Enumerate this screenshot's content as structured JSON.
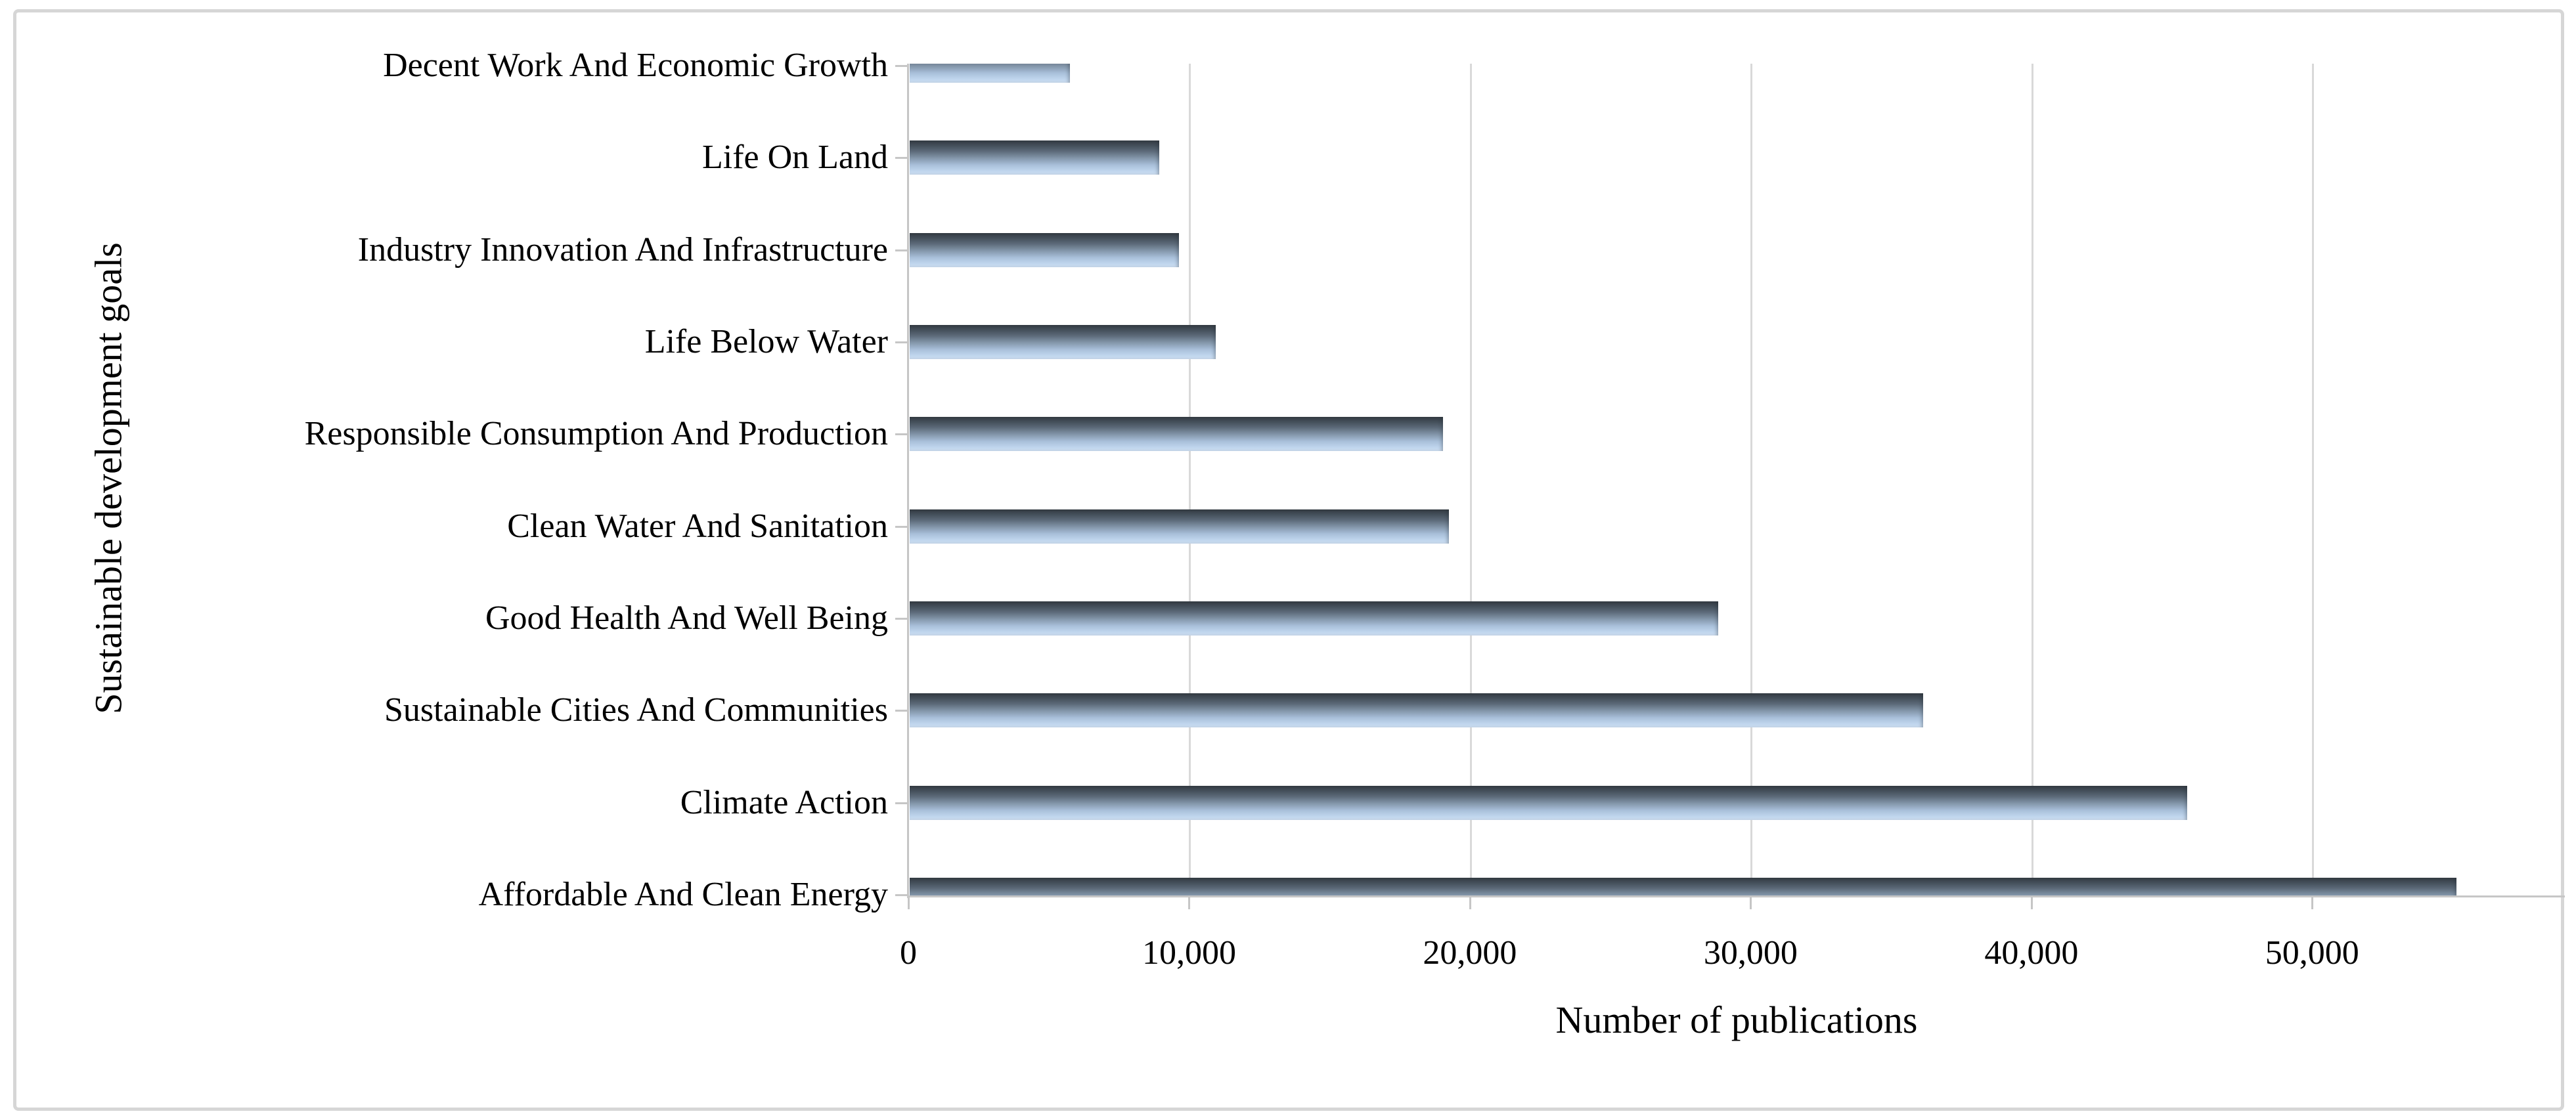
{
  "figure": {
    "y_axis_title": "Sustainable development goals",
    "x_axis_title": "Number of publications"
  },
  "chart_data": {
    "type": "bar",
    "orientation": "horizontal",
    "title": "",
    "xlabel": "Number of publications",
    "ylabel": "Sustainable development goals",
    "categories": [
      "Decent Work And Economic Growth",
      "Life On Land",
      "Industry Innovation And Infrastructure",
      "Life Below Water",
      "Responsible Consumption And Production",
      "Clean Water And Sanitation",
      "Good Health And Well Being",
      "Sustainable Cities And Communities",
      "Climate Action",
      "Affordable And Clean Energy"
    ],
    "values": [
      5700,
      8900,
      9600,
      10900,
      19000,
      19200,
      28800,
      36100,
      45500,
      55100
    ],
    "xlim": [
      0,
      59000
    ],
    "x_ticks": [
      0,
      10000,
      20000,
      30000,
      40000,
      50000
    ],
    "x_tick_labels": [
      "0",
      "10,000",
      "20,000",
      "30,000",
      "40,000",
      "50,000"
    ],
    "grid": "vertical",
    "legend": "none",
    "bar_gradient": [
      "#343b43",
      "#8497ab",
      "#cfe0f4"
    ],
    "gridline_color": "#d9d9d9",
    "axis_color": "#c6c6c6",
    "text_color": "#000000"
  }
}
